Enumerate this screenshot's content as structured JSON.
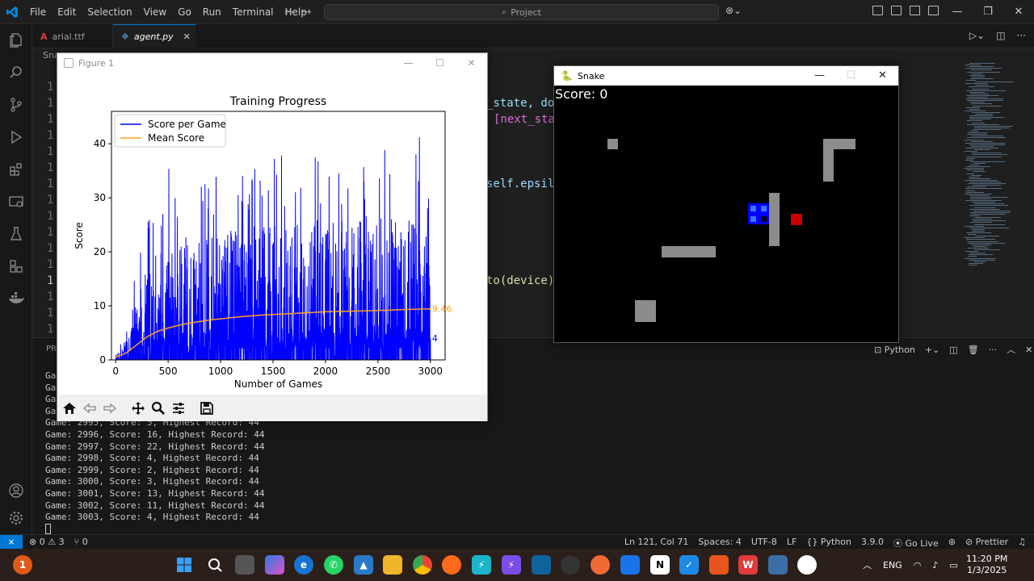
{
  "vscode": {
    "menu": [
      "File",
      "Edit",
      "Selection",
      "View",
      "Go",
      "Run",
      "Terminal",
      "Help"
    ],
    "search_placeholder": "Project",
    "tabs": [
      {
        "label": "arial.ttf",
        "icon": "font-file-icon",
        "active": false
      },
      {
        "label": "agent.py",
        "icon": "python-file-icon",
        "active": true
      }
    ],
    "breadcrumb": "Sna",
    "editor": {
      "line_numbers": [
        "1",
        "1",
        "1",
        "1",
        "1",
        "1",
        "1",
        "1",
        "1",
        "1",
        "1",
        "1",
        "1",
        "1",
        "1",
        "1",
        "1",
        "1",
        "1",
        "1",
        "1",
        "1",
        "1",
        "1"
      ],
      "code_fragments": [
        "_state, do",
        "[next_sta",
        "self.epsil",
        "to(device)"
      ]
    },
    "panel": {
      "title": "PRO",
      "terminal_type": "Python",
      "terminal_prefixes": [
        "Ga",
        "Ga",
        "Ga",
        "Ga"
      ],
      "terminal_lines": [
        "Game: 2995, Score: 5, Highest Record: 44",
        "Game: 2996, Score: 16, Highest Record: 44",
        "Game: 2997, Score: 22, Highest Record: 44",
        "Game: 2998, Score: 4, Highest Record: 44",
        "Game: 2999, Score: 2, Highest Record: 44",
        "Game: 3000, Score: 3, Highest Record: 44",
        "Game: 3001, Score: 13, Highest Record: 44",
        "Game: 3002, Score: 11, Highest Record: 44",
        "Game: 3003, Score: 4, Highest Record: 44"
      ]
    },
    "statusbar": {
      "errors": "0",
      "warnings": "3",
      "ports": "0",
      "position": "Ln 121, Col 71",
      "spaces": "Spaces: 4",
      "encoding": "UTF-8",
      "eol": "LF",
      "language": "Python",
      "interpreter": "3.9.0",
      "golive": "Go Live",
      "prettier": "Prettier"
    }
  },
  "figure_window": {
    "title": "Figure 1",
    "toolbar": [
      "home-icon",
      "back-icon",
      "forward-icon",
      "pan-icon",
      "zoom-icon",
      "configure-icon",
      "save-icon"
    ]
  },
  "chart_data": {
    "type": "line",
    "title": "Training Progress",
    "xlabel": "Number of Games",
    "ylabel": "Score",
    "xlim": [
      -40,
      3140
    ],
    "ylim": [
      0,
      46
    ],
    "xticks": [
      0,
      500,
      1000,
      1500,
      2000,
      2500,
      3000
    ],
    "yticks": [
      0,
      10,
      20,
      30,
      40
    ],
    "legend_position": "top-left",
    "series": [
      {
        "name": "Score per Game",
        "color": "#0000ff",
        "envelope": {
          "x": [
            0,
            50,
            100,
            150,
            200,
            250,
            300,
            400,
            500,
            600,
            700,
            800,
            900,
            1000,
            1100,
            1200,
            1300,
            1400,
            1500,
            1600,
            1700,
            1800,
            1900,
            2000,
            2100,
            2200,
            2300,
            2400,
            2500,
            2600,
            2700,
            2800,
            2900,
            3000
          ],
          "peak": [
            1,
            3,
            6,
            13,
            20,
            25,
            28,
            30,
            36,
            35,
            36,
            37,
            34,
            37,
            36,
            35,
            36,
            39,
            38,
            38,
            37,
            36,
            40,
            35,
            38,
            37,
            39,
            35,
            44,
            40,
            38,
            39,
            43,
            30
          ],
          "typical_high": [
            1,
            2,
            4,
            9,
            12,
            15,
            17,
            20,
            22,
            22,
            23,
            23,
            23,
            24,
            24,
            24,
            25,
            25,
            25,
            25,
            25,
            25,
            26,
            26,
            26,
            26,
            26,
            26,
            27,
            27,
            27,
            27,
            27,
            20
          ]
        },
        "last_value": 4
      },
      {
        "name": "Mean Score",
        "color": "#ff9f1c",
        "x": [
          0,
          100,
          200,
          300,
          400,
          500,
          600,
          700,
          800,
          900,
          1000,
          1200,
          1400,
          1600,
          1800,
          2000,
          2200,
          2400,
          2600,
          2800,
          3000
        ],
        "values": [
          0.5,
          1.3,
          2.8,
          4.3,
          5.3,
          5.9,
          6.4,
          6.8,
          7.1,
          7.4,
          7.6,
          8.0,
          8.3,
          8.5,
          8.7,
          8.9,
          9.0,
          9.1,
          9.2,
          9.35,
          9.46
        ],
        "last_value": 9.46
      }
    ],
    "end_labels": [
      "9.46",
      "4"
    ]
  },
  "snake_window": {
    "title": "Snake",
    "score_text": "Score: 0",
    "colors": {
      "background": "#000000",
      "obstacle": "#8c8c8c",
      "snake": "#0000ff",
      "food": "#c80000"
    }
  },
  "taskbar": {
    "tray_lang": "ENG",
    "time": "11:20 PM",
    "date": "1/3/2025"
  }
}
